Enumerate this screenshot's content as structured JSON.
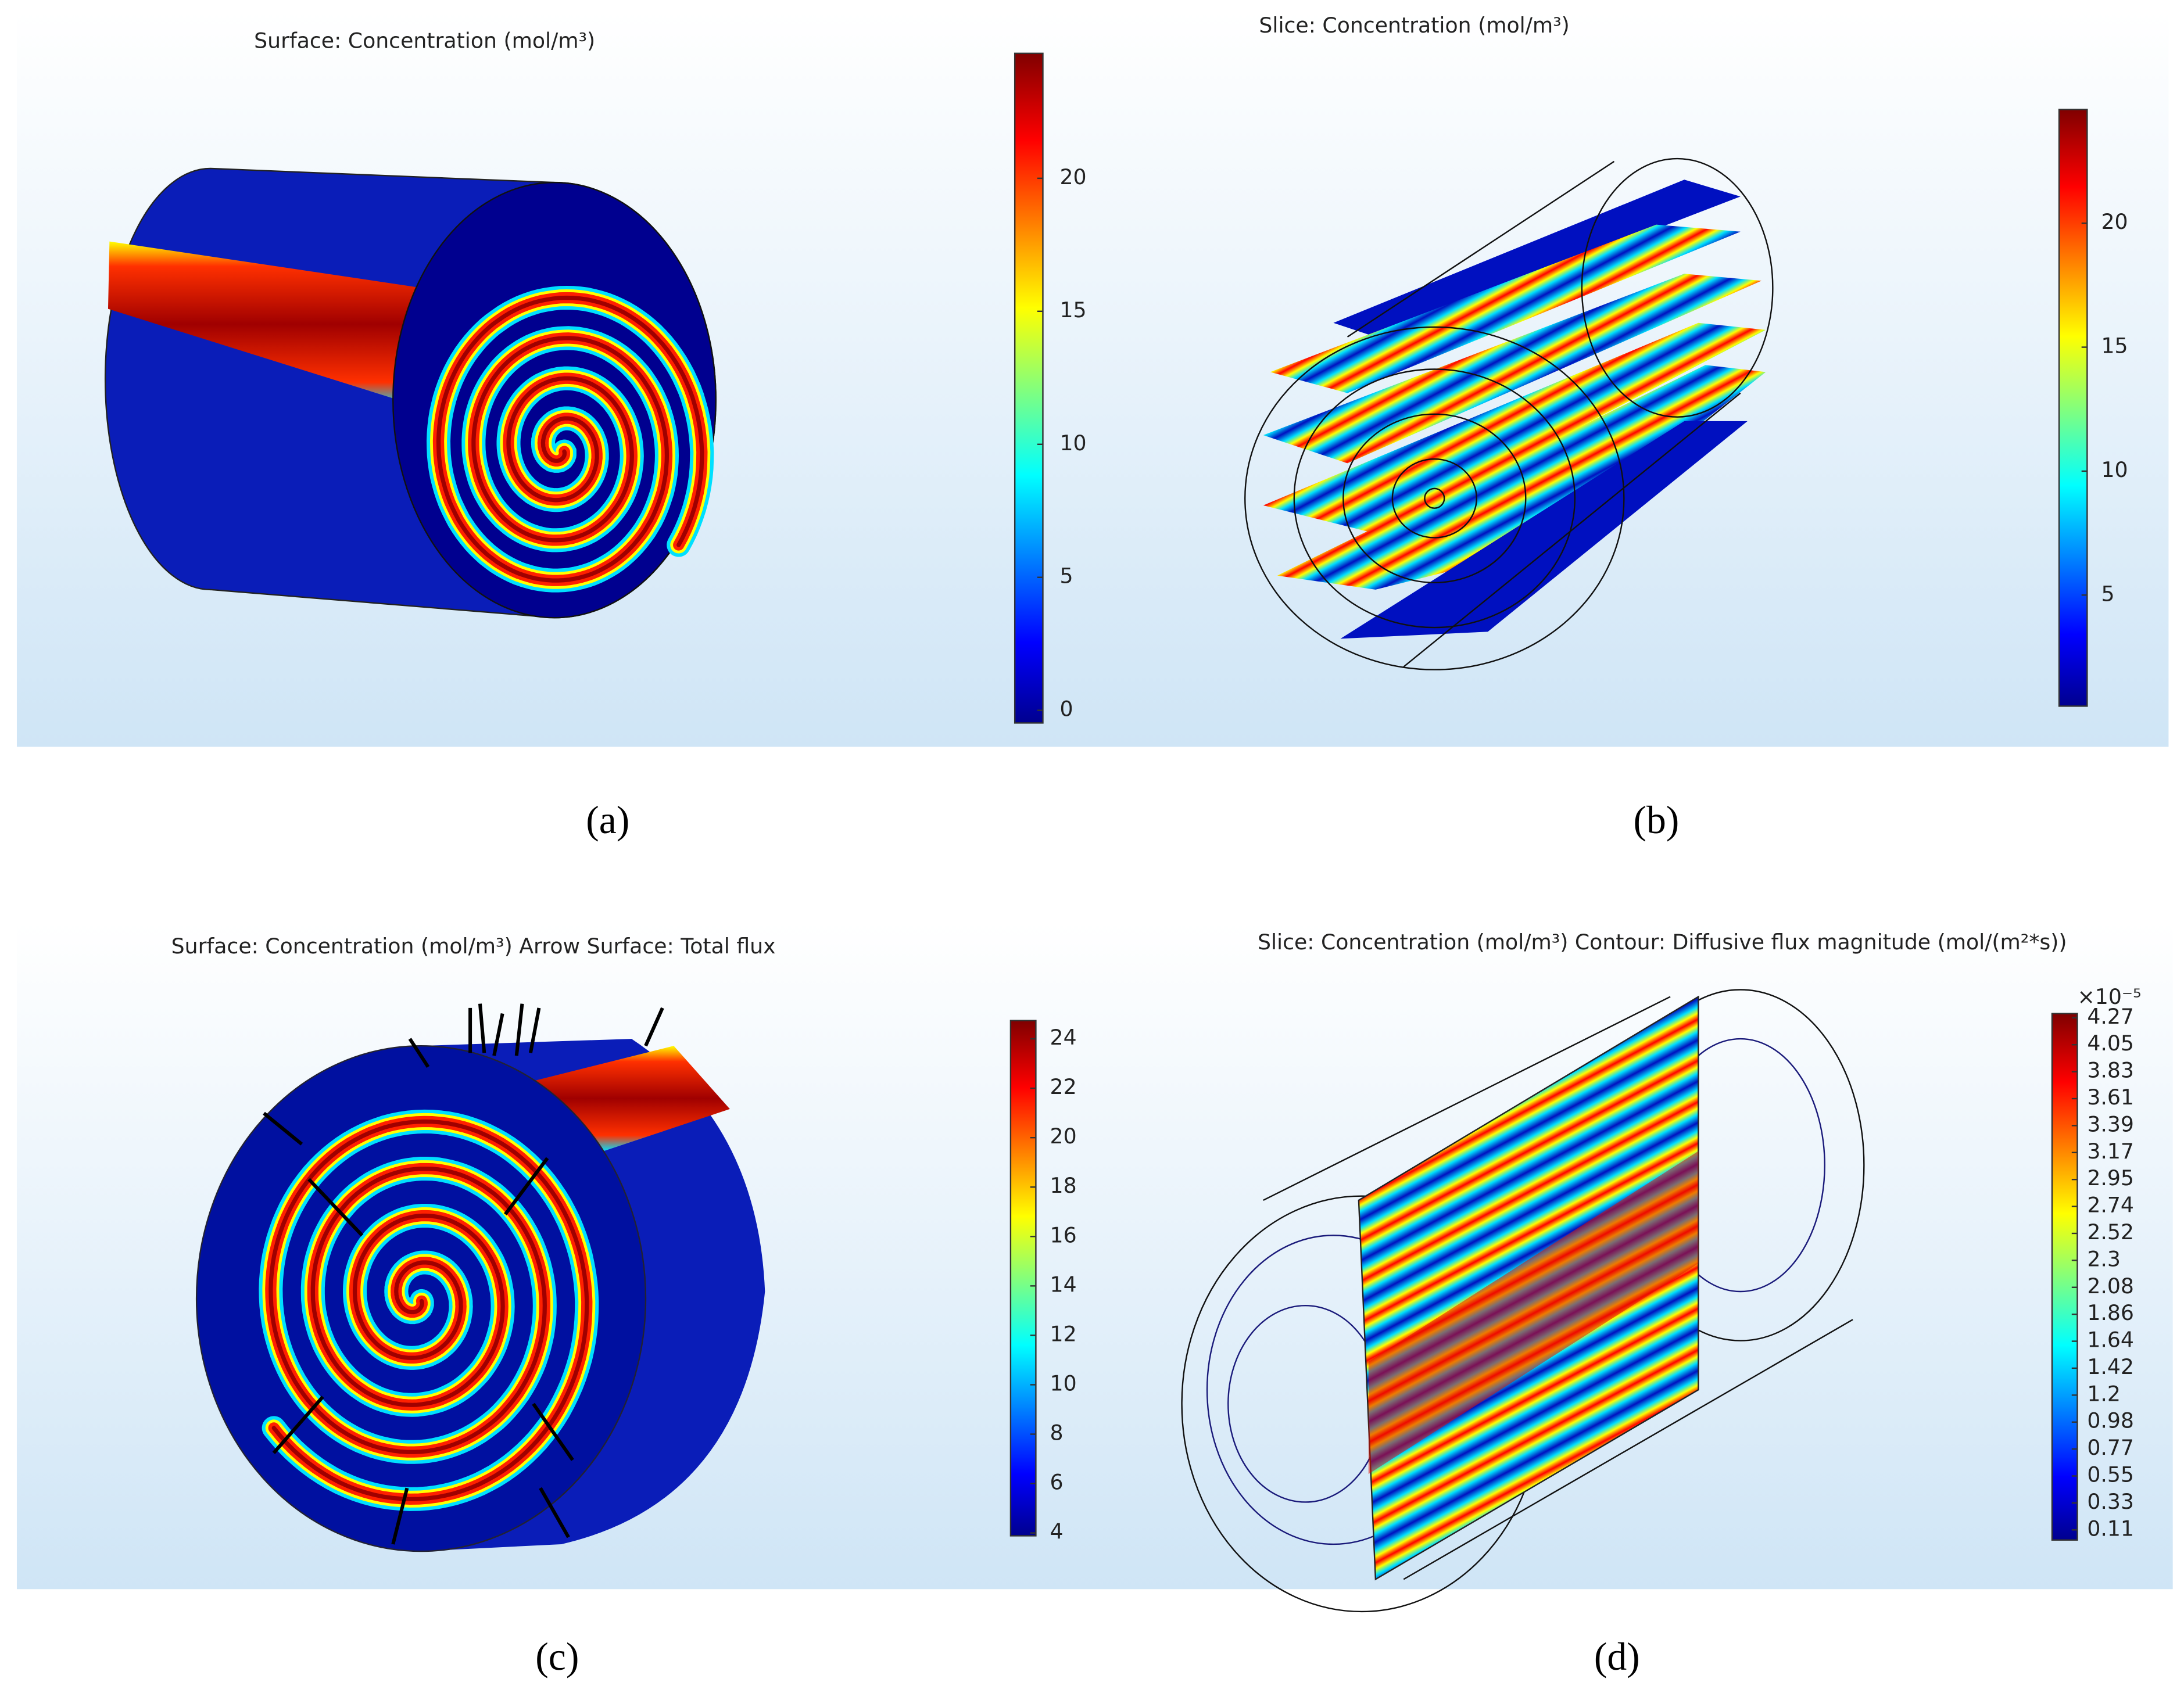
{
  "panels": [
    {
      "title": "Surface: Concentration (mol/m³)",
      "colorbar": {
        "ticks": [
          "20",
          "15",
          "10",
          "5",
          "0"
        ]
      },
      "caption": "(a)"
    },
    {
      "title": "Slice: Concentration (mol/m³)",
      "colorbar": {
        "ticks": [
          "20",
          "15",
          "10",
          "5"
        ]
      },
      "caption": "(b)"
    },
    {
      "title": "Surface: Concentration (mol/m³)  Arrow Surface: Total flux",
      "colorbar": {
        "ticks": [
          "24",
          "22",
          "20",
          "18",
          "16",
          "14",
          "12",
          "10",
          "8",
          "6",
          "4"
        ]
      },
      "caption": "(c)"
    },
    {
      "title": "Slice: Concentration (mol/m³)  Contour: Diffusive flux magnitude (mol/(m²*s))",
      "colorbar": {
        "multiplier": "×10⁻⁵",
        "ticks": [
          "4.27",
          "4.05",
          "3.83",
          "3.61",
          "3.39",
          "3.17",
          "2.95",
          "2.74",
          "2.52",
          "2.3",
          "2.08",
          "1.86",
          "1.64",
          "1.42",
          "1.2",
          "0.98",
          "0.77",
          "0.55",
          "0.33",
          "0.11"
        ]
      },
      "caption": "(d)"
    }
  ]
}
